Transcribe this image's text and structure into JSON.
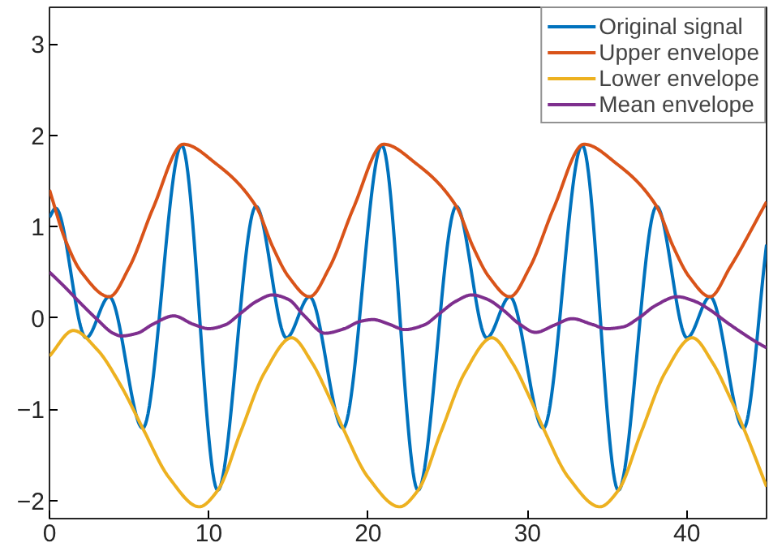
{
  "chart_data": {
    "type": "line",
    "xlim": [
      0,
      45
    ],
    "ylim": [
      -2.2,
      3.4
    ],
    "xticks": [
      0,
      10,
      20,
      30,
      40
    ],
    "yticks": [
      -2,
      -1,
      0,
      1,
      2,
      3
    ],
    "grid": false,
    "legend": "top right",
    "line_style": "solid",
    "marker": "none",
    "series": [
      {
        "name": "Original signal",
        "color": "#0072bd",
        "x": [
          0,
          0.39,
          2.3,
          3.75,
          5.85,
          8.29,
          10.56,
          12.96,
          14.87,
          16.32,
          18.42,
          20.86,
          23.13,
          25.53,
          27.44,
          28.89,
          30.99,
          33.43,
          35.7,
          38.1,
          40.01,
          41.46,
          43.56,
          45
        ],
        "values": [
          1.1,
          1.2,
          -0.22,
          0.23,
          -1.21,
          1.89,
          -1.89,
          1.22,
          -0.22,
          0.23,
          -1.21,
          1.89,
          -1.89,
          1.22,
          -0.22,
          0.23,
          -1.21,
          1.89,
          -1.89,
          1.22,
          -0.22,
          0.23,
          -1.21,
          0.8
        ]
      },
      {
        "name": "Upper envelope",
        "color": "#d95319",
        "x": [
          0,
          1,
          2,
          3.75,
          5,
          6.5,
          8.4,
          10.5,
          12.96,
          14,
          15,
          16.32,
          17.57,
          19.07,
          20.97,
          23.07,
          25.53,
          26.57,
          27.57,
          28.89,
          30.14,
          31.64,
          33.54,
          35.64,
          38.1,
          39.14,
          40.14,
          41.46,
          42.7,
          45
        ],
        "values": [
          1.4,
          0.85,
          0.5,
          0.23,
          0.55,
          1.2,
          1.9,
          1.68,
          1.22,
          0.78,
          0.45,
          0.23,
          0.55,
          1.2,
          1.9,
          1.68,
          1.22,
          0.78,
          0.45,
          0.23,
          0.55,
          1.2,
          1.9,
          1.68,
          1.22,
          0.78,
          0.45,
          0.23,
          0.55,
          1.27
        ]
      },
      {
        "name": "Lower envelope",
        "color": "#edb120",
        "x": [
          0,
          1.5,
          3,
          4.5,
          5.85,
          7.5,
          9.4,
          10.56,
          12,
          13.5,
          15.2,
          16.5,
          17.5,
          18.42,
          20,
          21.97,
          23.13,
          24.57,
          26.07,
          27.77,
          29.07,
          30.07,
          30.99,
          32.57,
          34.54,
          35.7,
          37.14,
          38.64,
          40.34,
          41.64,
          42.64,
          43.56,
          45
        ],
        "values": [
          -0.42,
          -0.14,
          -0.35,
          -0.75,
          -1.21,
          -1.75,
          -2.07,
          -1.89,
          -1.25,
          -0.6,
          -0.22,
          -0.5,
          -0.85,
          -1.21,
          -1.75,
          -2.07,
          -1.89,
          -1.25,
          -0.6,
          -0.22,
          -0.5,
          -0.85,
          -1.21,
          -1.75,
          -2.07,
          -1.89,
          -1.25,
          -0.6,
          -0.22,
          -0.5,
          -0.85,
          -1.21,
          -1.85
        ]
      },
      {
        "name": "Mean envelope",
        "color": "#7e2f8e",
        "x": [
          0,
          1,
          2,
          3,
          4,
          4.5,
          5.5,
          6.5,
          7.8,
          9,
          10,
          11,
          12,
          13,
          14,
          15,
          16,
          17.3,
          18.5,
          19.5,
          20.3,
          21.3,
          22.3,
          23.5,
          24.5,
          25.5,
          26.5,
          27.5,
          28.5,
          29.5,
          30.5,
          31.7,
          32.8,
          34,
          35,
          36,
          37,
          38,
          39.4,
          40.5,
          41.5,
          42.5,
          43.5,
          44.3,
          45
        ],
        "values": [
          0.5,
          0.33,
          0.15,
          -0.02,
          -0.17,
          -0.2,
          -0.17,
          -0.07,
          0.02,
          -0.07,
          -0.12,
          -0.08,
          0.05,
          0.18,
          0.25,
          0.2,
          0.02,
          -0.17,
          -0.12,
          -0.04,
          -0.02,
          -0.07,
          -0.13,
          -0.08,
          0.05,
          0.18,
          0.25,
          0.2,
          0.08,
          -0.07,
          -0.16,
          -0.08,
          -0.01,
          -0.07,
          -0.12,
          -0.1,
          0,
          0.13,
          0.23,
          0.18,
          0.08,
          -0.05,
          -0.17,
          -0.26,
          -0.33
        ]
      }
    ]
  }
}
